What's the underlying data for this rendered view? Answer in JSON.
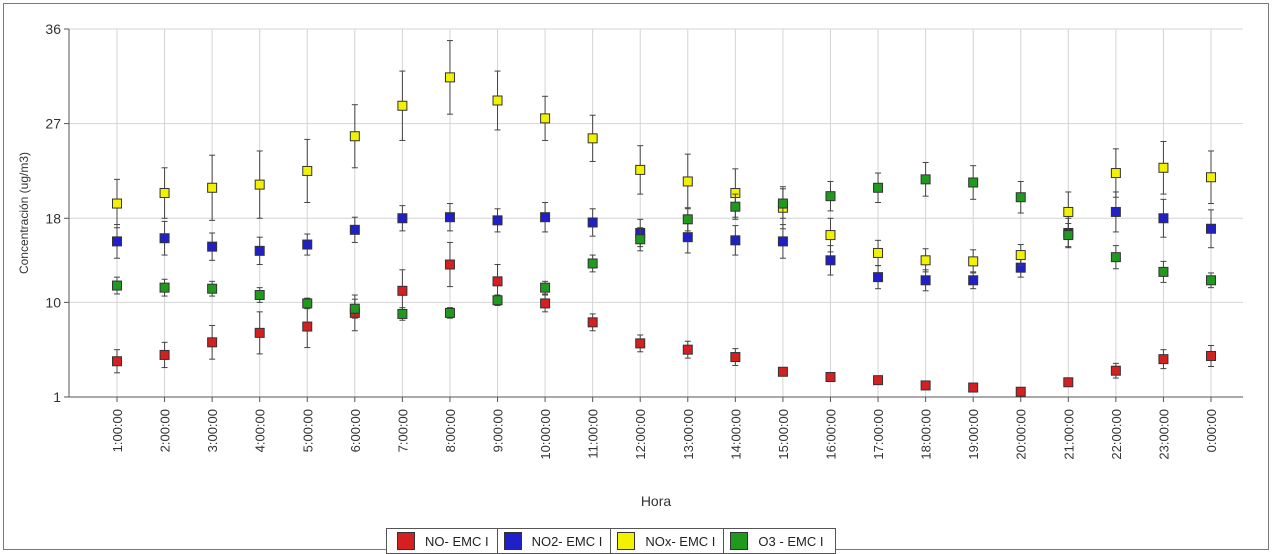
{
  "chart_data": {
    "type": "scatter",
    "title": "",
    "xlabel": "Hora",
    "ylabel": "Concentración (ug/m3)",
    "ylim": [
      1,
      36
    ],
    "yticks": [
      "1",
      "10",
      "18",
      "27",
      "36"
    ],
    "categories": [
      "1:00:00",
      "2:00:00",
      "3:00:00",
      "4:00:00",
      "5:00:00",
      "6:00:00",
      "7:00:00",
      "8:00:00",
      "9:00:00",
      "10:00:00",
      "11:00:00",
      "12:00:00",
      "13:00:00",
      "14:00:00",
      "15:00:00",
      "16:00:00",
      "17:00:00",
      "18:00:00",
      "19:00:00",
      "20:00:00",
      "21:00:00",
      "22:00:00",
      "23:00:00",
      "0:00:00"
    ],
    "grid": true,
    "legend_position": "bottom",
    "series": [
      {
        "name": "NO- EMC I",
        "color": "#d42020",
        "values": [
          4.4,
          5.0,
          6.2,
          7.1,
          7.7,
          9.0,
          11.1,
          13.6,
          12.0,
          9.9,
          8.1,
          6.1,
          5.5,
          4.8,
          3.4,
          2.9,
          2.6,
          2.1,
          1.9,
          1.5,
          2.4,
          3.5,
          4.6,
          4.9
        ],
        "err": [
          1.1,
          1.2,
          1.6,
          2.0,
          2.0,
          1.7,
          2.0,
          2.1,
          1.6,
          0.8,
          0.8,
          0.8,
          0.8,
          0.8,
          0.4,
          0.4,
          0.4,
          0.3,
          0.3,
          0.3,
          0.4,
          0.7,
          0.9,
          1.0
        ]
      },
      {
        "name": "NO2- EMC I",
        "color": "#2020c8",
        "values": [
          15.8,
          16.1,
          15.3,
          14.9,
          15.5,
          16.9,
          18.0,
          18.1,
          17.8,
          18.1,
          17.6,
          16.6,
          16.2,
          15.9,
          15.8,
          14.0,
          12.4,
          12.1,
          12.1,
          13.3,
          16.6,
          18.6,
          18.0,
          17.0
        ],
        "err": [
          1.6,
          1.6,
          1.3,
          1.3,
          1.0,
          1.2,
          1.2,
          1.3,
          1.1,
          1.4,
          1.3,
          1.3,
          1.5,
          1.4,
          1.6,
          1.4,
          1.1,
          1.0,
          0.8,
          0.9,
          1.4,
          1.9,
          1.8,
          1.8
        ]
      },
      {
        "name": "NOx- EMC I",
        "color": "#f2f200",
        "values": [
          19.4,
          20.4,
          20.9,
          21.2,
          22.5,
          25.8,
          28.7,
          31.4,
          29.2,
          27.5,
          25.6,
          22.6,
          21.5,
          20.4,
          19.0,
          16.4,
          14.7,
          14.0,
          13.9,
          14.5,
          18.6,
          22.3,
          22.8,
          21.9
        ],
        "err": [
          2.3,
          2.4,
          3.1,
          3.2,
          3.0,
          3.0,
          3.3,
          3.5,
          2.8,
          2.1,
          2.2,
          2.3,
          2.6,
          2.3,
          2.0,
          1.6,
          1.2,
          1.1,
          1.1,
          1.0,
          1.9,
          2.3,
          2.5,
          2.5
        ]
      },
      {
        "name": "O3 - EMC I",
        "color": "#1f9a1f",
        "values": [
          11.6,
          11.4,
          11.3,
          10.7,
          9.9,
          9.4,
          8.9,
          9.0,
          10.2,
          11.4,
          13.7,
          16.0,
          17.9,
          19.1,
          19.4,
          20.1,
          20.9,
          21.7,
          21.4,
          20.0,
          16.4,
          14.3,
          12.9,
          12.1
        ],
        "err": [
          0.8,
          0.8,
          0.7,
          0.7,
          0.5,
          0.9,
          0.6,
          0.5,
          0.5,
          0.6,
          0.8,
          1.1,
          1.1,
          1.2,
          1.4,
          1.4,
          1.4,
          1.6,
          1.6,
          1.5,
          1.1,
          1.1,
          1.0,
          0.7
        ]
      }
    ]
  }
}
